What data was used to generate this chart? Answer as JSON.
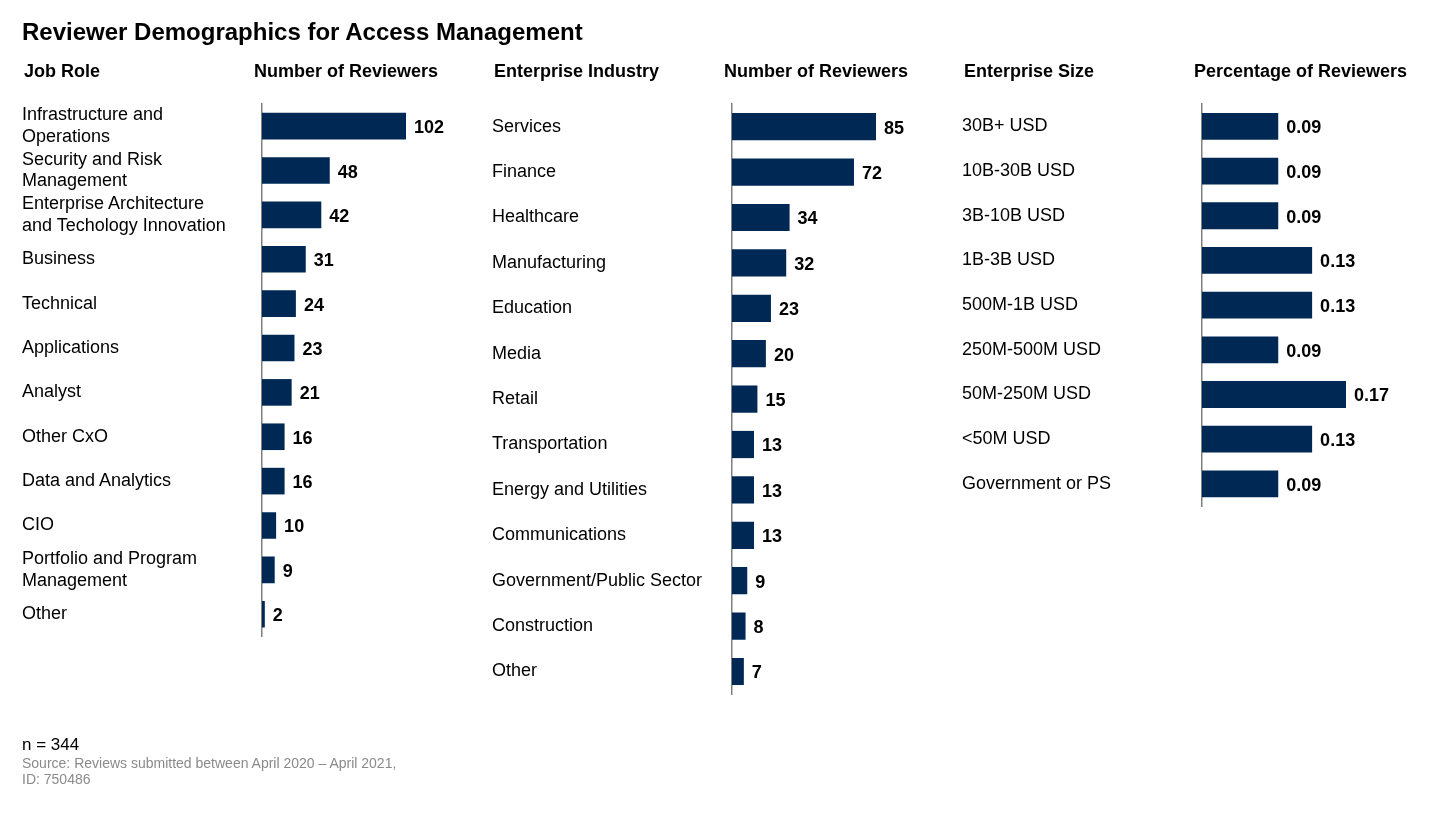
{
  "chart_data": [
    {
      "type": "bar",
      "orientation": "horizontal",
      "title": "Reviewer Demographics for Access Management",
      "ylabel": "Job Role",
      "xlabel": "Number of Reviewers",
      "categories": [
        "Infrastructure and Operations",
        "Security and Risk Management",
        "Enterprise Architecture and Techology Innovation",
        "Business",
        "Technical",
        "Applications",
        "Analyst",
        "Other CxO",
        "Data and Analytics",
        "CIO",
        "Portfolio and Program Management",
        "Other"
      ],
      "values": [
        102,
        48,
        42,
        31,
        24,
        23,
        21,
        16,
        16,
        10,
        9,
        2
      ],
      "color": "#002855",
      "data_labels": true,
      "annotations": [
        "n = 344",
        "Source: Reviews submitted between April 2020 – April 2021,\nID: 750486"
      ]
    },
    {
      "type": "bar",
      "orientation": "horizontal",
      "ylabel": "Enterprise Industry",
      "xlabel": "Number of Reviewers",
      "categories": [
        "Services",
        "Finance",
        "Healthcare",
        "Manufacturing",
        "Education",
        "Media",
        "Retail",
        "Transportation",
        "Energy and Utilities",
        "Communications",
        "Government/Public Sector",
        "Construction",
        "Other"
      ],
      "values": [
        85,
        72,
        34,
        32,
        23,
        20,
        15,
        13,
        13,
        13,
        9,
        8,
        7
      ],
      "color": "#002855",
      "data_labels": true
    },
    {
      "type": "bar",
      "orientation": "horizontal",
      "ylabel": "Enterprise Size",
      "xlabel": "Percentage of Reviewers",
      "categories": [
        "30B+ USD",
        "10B-30B USD",
        "3B-10B USD",
        "1B-3B USD",
        "500M-1B USD",
        "250M-500M USD",
        "50M-250M USD",
        "<50M USD",
        "Government or PS"
      ],
      "values": [
        0.09,
        0.09,
        0.09,
        0.13,
        0.13,
        0.09,
        0.17,
        0.13,
        0.09
      ],
      "color": "#002855",
      "data_labels": true
    }
  ]
}
